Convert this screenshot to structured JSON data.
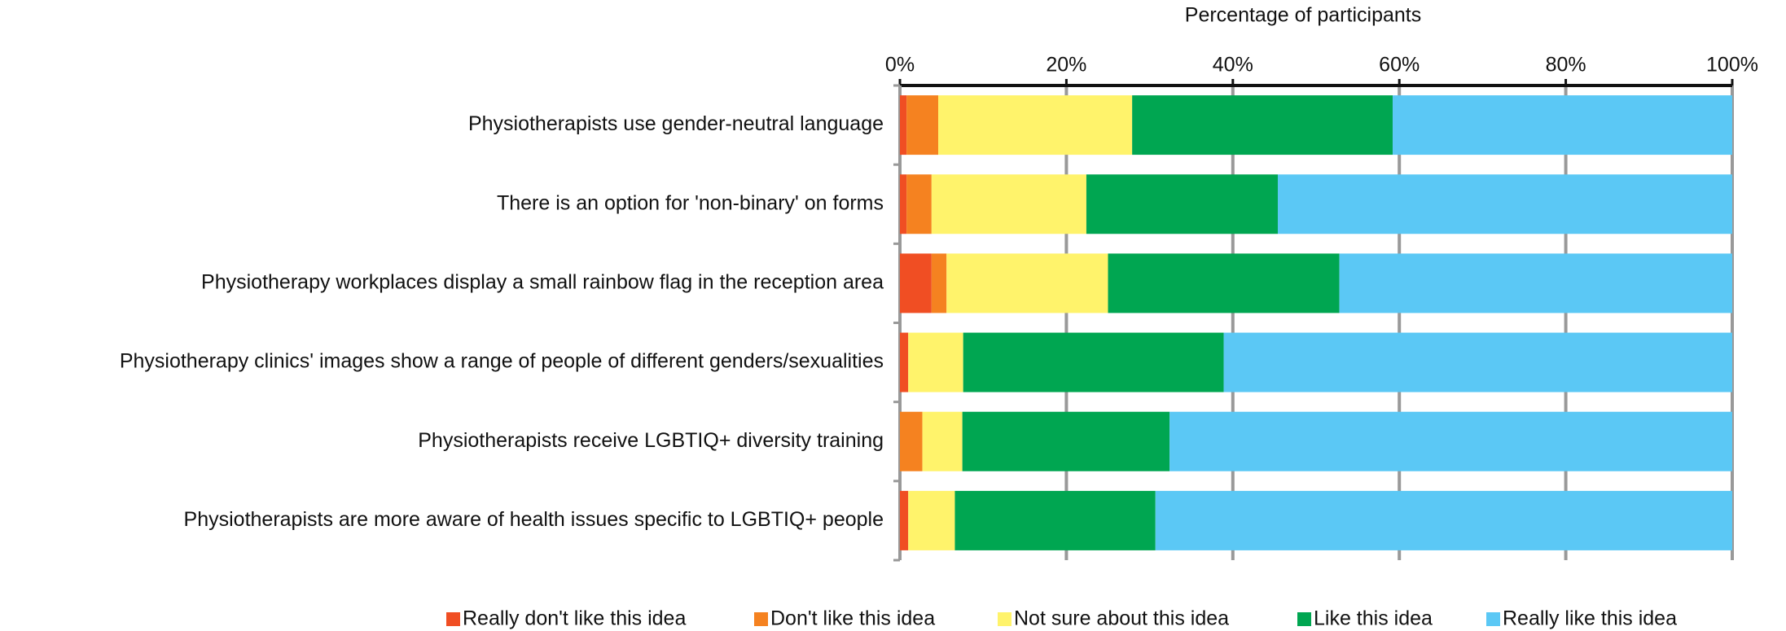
{
  "chart_data": {
    "type": "stacked_hbar",
    "title": "Percentage of participants",
    "categories": [
      "Physiotherapists use gender-neutral language",
      "There is an option for 'non-binary' on forms",
      "Physiotherapy workplaces display a small rainbow flag in the reception area",
      "Physiotherapy clinics' images show a range of people of different genders/sexualities",
      "Physiotherapists receive LGBTIQ+ diversity training",
      "Physiotherapists are more aware of health issues specific to LGBTIQ+ people"
    ],
    "series": [
      {
        "name": "Really don't like this idea",
        "color": "#f04e23",
        "values": [
          0.8,
          0.8,
          3.8,
          1.0,
          0,
          1.0
        ]
      },
      {
        "name": "Don't like this idea",
        "color": "#f58220",
        "values": [
          3.8,
          3.0,
          1.8,
          0,
          2.7,
          0
        ]
      },
      {
        "name": "Not sure about this idea",
        "color": "#fff36b",
        "values": [
          23.3,
          18.6,
          19.4,
          6.6,
          4.8,
          5.6
        ]
      },
      {
        "name": "Like this idea",
        "color": "#00a651",
        "values": [
          31.3,
          23.0,
          27.8,
          31.3,
          24.9,
          24.1
        ]
      },
      {
        "name": "Really like this idea",
        "color": "#5bc8f5",
        "values": [
          40.8,
          54.6,
          47.2,
          61.1,
          67.6,
          69.3
        ]
      }
    ],
    "xlim": [
      0,
      100
    ],
    "xticks": [
      {
        "value": 0,
        "label": "0%"
      },
      {
        "value": 20,
        "label": "20%"
      },
      {
        "value": 40,
        "label": "40%"
      },
      {
        "value": 60,
        "label": "60%"
      },
      {
        "value": 80,
        "label": "80%"
      },
      {
        "value": 100,
        "label": "100%"
      }
    ],
    "grid": true,
    "legend": "bottom"
  }
}
